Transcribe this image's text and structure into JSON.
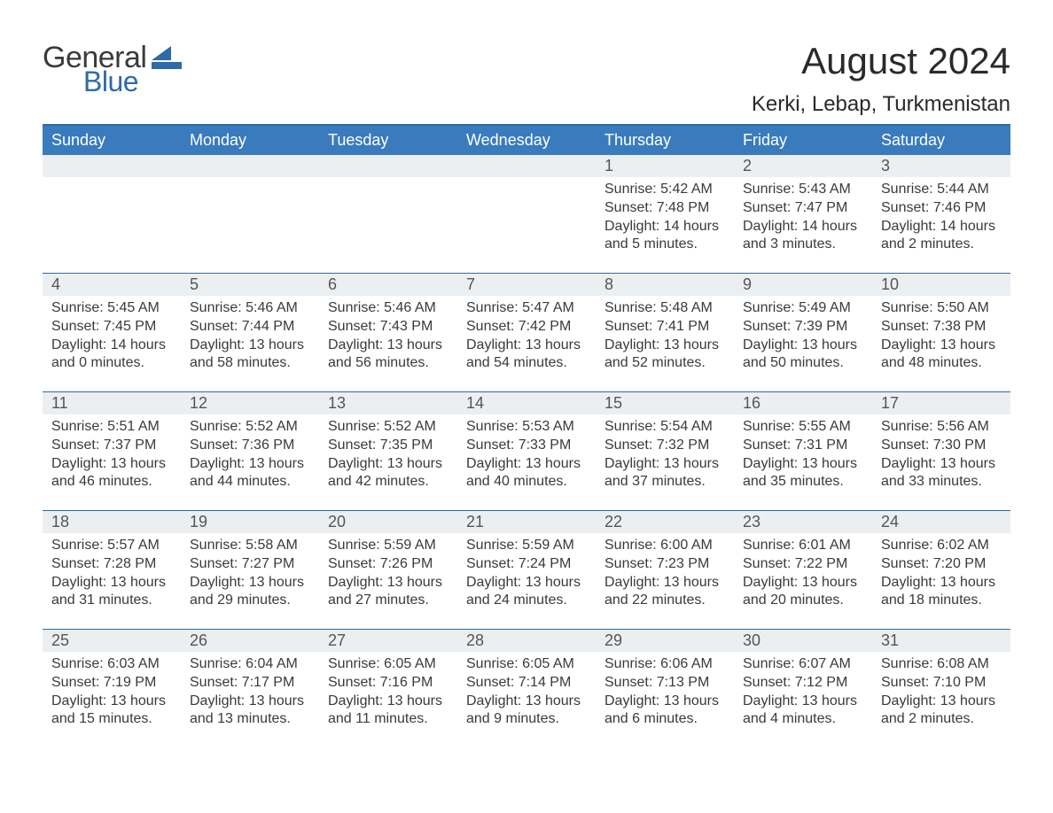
{
  "logo": {
    "general": "General",
    "blue": "Blue",
    "flag_color": "#306aa8"
  },
  "header": {
    "month_title": "August 2024",
    "location": "Kerki, Lebap, Turkmenistan"
  },
  "style": {
    "accent": "#306aa8",
    "header_bg": "#397bbd",
    "day_num_bg": "#eceff1",
    "text_color": "#3a3a3a",
    "background": "#ffffff",
    "title_fontsize": 42,
    "location_fontsize": 24,
    "weekday_fontsize": 18,
    "daynum_fontsize": 18,
    "body_fontsize": 16
  },
  "weekdays": [
    "Sunday",
    "Monday",
    "Tuesday",
    "Wednesday",
    "Thursday",
    "Friday",
    "Saturday"
  ],
  "weeks": [
    [
      {
        "n": "",
        "sunrise": "",
        "sunset": "",
        "daylight": ""
      },
      {
        "n": "",
        "sunrise": "",
        "sunset": "",
        "daylight": ""
      },
      {
        "n": "",
        "sunrise": "",
        "sunset": "",
        "daylight": ""
      },
      {
        "n": "",
        "sunrise": "",
        "sunset": "",
        "daylight": ""
      },
      {
        "n": "1",
        "sunrise": "Sunrise: 5:42 AM",
        "sunset": "Sunset: 7:48 PM",
        "daylight": "Daylight: 14 hours and 5 minutes."
      },
      {
        "n": "2",
        "sunrise": "Sunrise: 5:43 AM",
        "sunset": "Sunset: 7:47 PM",
        "daylight": "Daylight: 14 hours and 3 minutes."
      },
      {
        "n": "3",
        "sunrise": "Sunrise: 5:44 AM",
        "sunset": "Sunset: 7:46 PM",
        "daylight": "Daylight: 14 hours and 2 minutes."
      }
    ],
    [
      {
        "n": "4",
        "sunrise": "Sunrise: 5:45 AM",
        "sunset": "Sunset: 7:45 PM",
        "daylight": "Daylight: 14 hours and 0 minutes."
      },
      {
        "n": "5",
        "sunrise": "Sunrise: 5:46 AM",
        "sunset": "Sunset: 7:44 PM",
        "daylight": "Daylight: 13 hours and 58 minutes."
      },
      {
        "n": "6",
        "sunrise": "Sunrise: 5:46 AM",
        "sunset": "Sunset: 7:43 PM",
        "daylight": "Daylight: 13 hours and 56 minutes."
      },
      {
        "n": "7",
        "sunrise": "Sunrise: 5:47 AM",
        "sunset": "Sunset: 7:42 PM",
        "daylight": "Daylight: 13 hours and 54 minutes."
      },
      {
        "n": "8",
        "sunrise": "Sunrise: 5:48 AM",
        "sunset": "Sunset: 7:41 PM",
        "daylight": "Daylight: 13 hours and 52 minutes."
      },
      {
        "n": "9",
        "sunrise": "Sunrise: 5:49 AM",
        "sunset": "Sunset: 7:39 PM",
        "daylight": "Daylight: 13 hours and 50 minutes."
      },
      {
        "n": "10",
        "sunrise": "Sunrise: 5:50 AM",
        "sunset": "Sunset: 7:38 PM",
        "daylight": "Daylight: 13 hours and 48 minutes."
      }
    ],
    [
      {
        "n": "11",
        "sunrise": "Sunrise: 5:51 AM",
        "sunset": "Sunset: 7:37 PM",
        "daylight": "Daylight: 13 hours and 46 minutes."
      },
      {
        "n": "12",
        "sunrise": "Sunrise: 5:52 AM",
        "sunset": "Sunset: 7:36 PM",
        "daylight": "Daylight: 13 hours and 44 minutes."
      },
      {
        "n": "13",
        "sunrise": "Sunrise: 5:52 AM",
        "sunset": "Sunset: 7:35 PM",
        "daylight": "Daylight: 13 hours and 42 minutes."
      },
      {
        "n": "14",
        "sunrise": "Sunrise: 5:53 AM",
        "sunset": "Sunset: 7:33 PM",
        "daylight": "Daylight: 13 hours and 40 minutes."
      },
      {
        "n": "15",
        "sunrise": "Sunrise: 5:54 AM",
        "sunset": "Sunset: 7:32 PM",
        "daylight": "Daylight: 13 hours and 37 minutes."
      },
      {
        "n": "16",
        "sunrise": "Sunrise: 5:55 AM",
        "sunset": "Sunset: 7:31 PM",
        "daylight": "Daylight: 13 hours and 35 minutes."
      },
      {
        "n": "17",
        "sunrise": "Sunrise: 5:56 AM",
        "sunset": "Sunset: 7:30 PM",
        "daylight": "Daylight: 13 hours and 33 minutes."
      }
    ],
    [
      {
        "n": "18",
        "sunrise": "Sunrise: 5:57 AM",
        "sunset": "Sunset: 7:28 PM",
        "daylight": "Daylight: 13 hours and 31 minutes."
      },
      {
        "n": "19",
        "sunrise": "Sunrise: 5:58 AM",
        "sunset": "Sunset: 7:27 PM",
        "daylight": "Daylight: 13 hours and 29 minutes."
      },
      {
        "n": "20",
        "sunrise": "Sunrise: 5:59 AM",
        "sunset": "Sunset: 7:26 PM",
        "daylight": "Daylight: 13 hours and 27 minutes."
      },
      {
        "n": "21",
        "sunrise": "Sunrise: 5:59 AM",
        "sunset": "Sunset: 7:24 PM",
        "daylight": "Daylight: 13 hours and 24 minutes."
      },
      {
        "n": "22",
        "sunrise": "Sunrise: 6:00 AM",
        "sunset": "Sunset: 7:23 PM",
        "daylight": "Daylight: 13 hours and 22 minutes."
      },
      {
        "n": "23",
        "sunrise": "Sunrise: 6:01 AM",
        "sunset": "Sunset: 7:22 PM",
        "daylight": "Daylight: 13 hours and 20 minutes."
      },
      {
        "n": "24",
        "sunrise": "Sunrise: 6:02 AM",
        "sunset": "Sunset: 7:20 PM",
        "daylight": "Daylight: 13 hours and 18 minutes."
      }
    ],
    [
      {
        "n": "25",
        "sunrise": "Sunrise: 6:03 AM",
        "sunset": "Sunset: 7:19 PM",
        "daylight": "Daylight: 13 hours and 15 minutes."
      },
      {
        "n": "26",
        "sunrise": "Sunrise: 6:04 AM",
        "sunset": "Sunset: 7:17 PM",
        "daylight": "Daylight: 13 hours and 13 minutes."
      },
      {
        "n": "27",
        "sunrise": "Sunrise: 6:05 AM",
        "sunset": "Sunset: 7:16 PM",
        "daylight": "Daylight: 13 hours and 11 minutes."
      },
      {
        "n": "28",
        "sunrise": "Sunrise: 6:05 AM",
        "sunset": "Sunset: 7:14 PM",
        "daylight": "Daylight: 13 hours and 9 minutes."
      },
      {
        "n": "29",
        "sunrise": "Sunrise: 6:06 AM",
        "sunset": "Sunset: 7:13 PM",
        "daylight": "Daylight: 13 hours and 6 minutes."
      },
      {
        "n": "30",
        "sunrise": "Sunrise: 6:07 AM",
        "sunset": "Sunset: 7:12 PM",
        "daylight": "Daylight: 13 hours and 4 minutes."
      },
      {
        "n": "31",
        "sunrise": "Sunrise: 6:08 AM",
        "sunset": "Sunset: 7:10 PM",
        "daylight": "Daylight: 13 hours and 2 minutes."
      }
    ]
  ]
}
